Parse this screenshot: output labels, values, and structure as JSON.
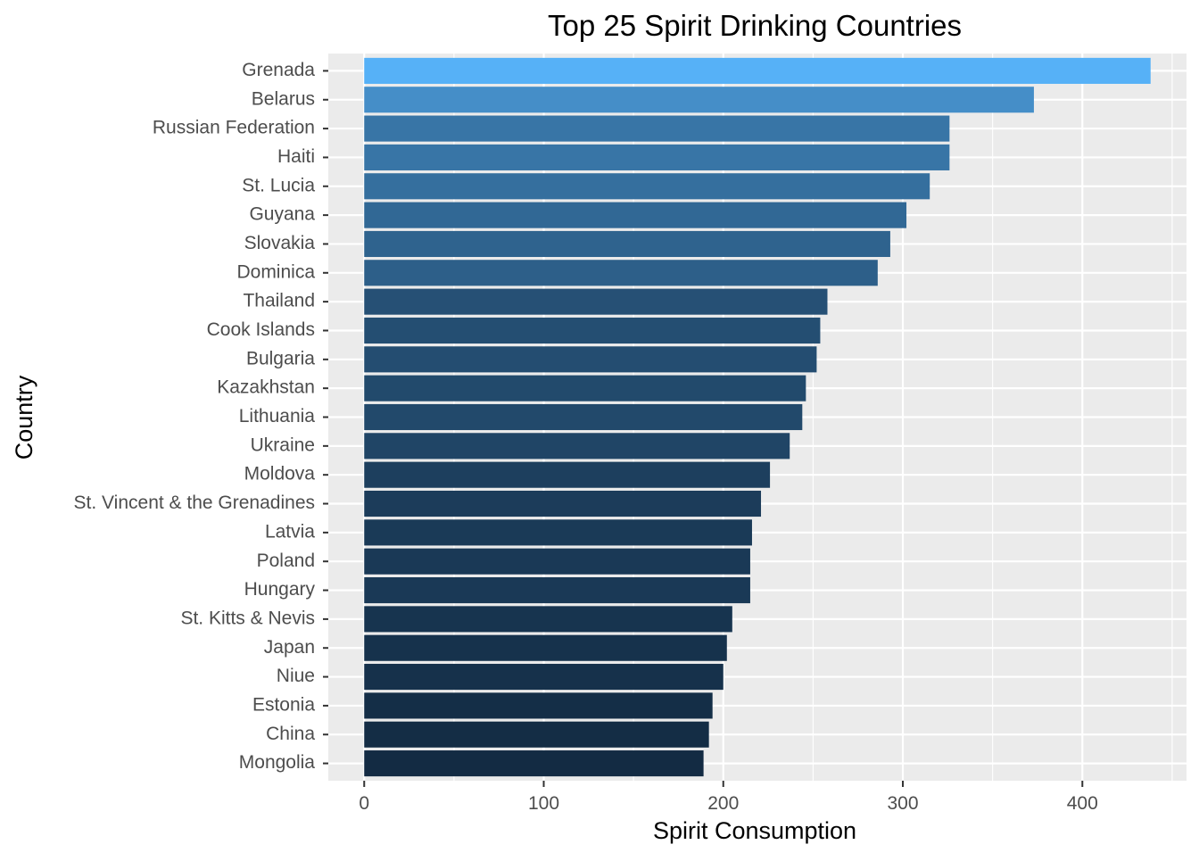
{
  "chart_data": {
    "type": "bar",
    "orientation": "horizontal",
    "title": "Top 25 Spirit Drinking Countries",
    "xlabel": "Spirit Consumption",
    "ylabel": "Country",
    "xlim": [
      -20,
      458
    ],
    "x_ticks": [
      0,
      100,
      200,
      300,
      400
    ],
    "x_tick_labels": [
      "0",
      "100",
      "200",
      "300",
      "400"
    ],
    "grid": true,
    "legend": "none",
    "color_scale": {
      "low": "#132B43",
      "high": "#56B1F7"
    },
    "categories": [
      "Grenada",
      "Belarus",
      "Russian Federation",
      "Haiti",
      "St. Lucia",
      "Guyana",
      "Slovakia",
      "Dominica",
      "Thailand",
      "Cook Islands",
      "Bulgaria",
      "Kazakhstan",
      "Lithuania",
      "Ukraine",
      "Moldova",
      "St. Vincent & the Grenadines",
      "Latvia",
      "Poland",
      "Hungary",
      "St. Kitts & Nevis",
      "Japan",
      "Niue",
      "Estonia",
      "China",
      "Mongolia"
    ],
    "values": [
      438,
      373,
      326,
      326,
      315,
      302,
      293,
      286,
      258,
      254,
      252,
      246,
      244,
      237,
      226,
      221,
      216,
      215,
      215,
      205,
      202,
      200,
      194,
      192,
      189
    ]
  }
}
